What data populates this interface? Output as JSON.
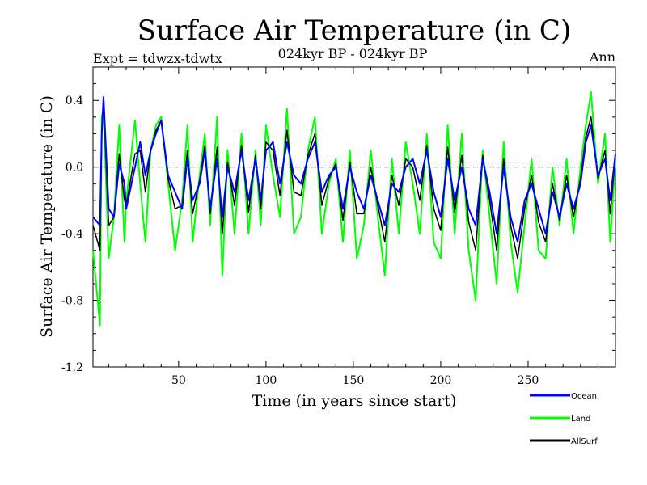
{
  "chart_data": {
    "type": "line",
    "title": "Surface Air Temperature (in C)",
    "subtitle": "024kyr BP - 024kyr BP",
    "experiment": "Expt = tdwzx-tdwtx",
    "period": "Ann",
    "xlabel": "Time (in years since start)",
    "ylabel": "Surface Air Temperature (in C)",
    "xlim": [
      1,
      300
    ],
    "ylim": [
      -1.2,
      0.6
    ],
    "x_ticks": [
      50,
      100,
      150,
      200,
      250
    ],
    "y_ticks": [
      "0.4",
      "0.0",
      "-0.4",
      "-0.8",
      "-1.2"
    ],
    "y_tick_values": [
      0.4,
      0.0,
      -0.4,
      -0.8,
      -1.2
    ],
    "reference_line": 0.0,
    "x": [
      1,
      5,
      6,
      7,
      10,
      13,
      16,
      19,
      20,
      25,
      28,
      31,
      34,
      37,
      40,
      44,
      48,
      52,
      55,
      58,
      62,
      65,
      68,
      72,
      75,
      78,
      82,
      86,
      90,
      94,
      97,
      100,
      104,
      108,
      112,
      116,
      120,
      124,
      128,
      132,
      136,
      140,
      144,
      148,
      152,
      156,
      160,
      164,
      168,
      172,
      176,
      180,
      184,
      188,
      192,
      196,
      200,
      204,
      208,
      212,
      216,
      220,
      224,
      228,
      232,
      236,
      240,
      244,
      248,
      252,
      256,
      260,
      264,
      268,
      272,
      276,
      280,
      283,
      286,
      290,
      294,
      297,
      300
    ],
    "series": [
      {
        "name": "Ocean",
        "color": "#0000ff",
        "values": [
          -0.3,
          -0.35,
          0.2,
          0.42,
          -0.25,
          -0.3,
          0.02,
          -0.1,
          -0.25,
          0.0,
          0.15,
          -0.05,
          0.1,
          0.2,
          0.28,
          -0.05,
          -0.15,
          -0.25,
          0.05,
          -0.2,
          -0.1,
          0.1,
          -0.25,
          0.05,
          -0.3,
          0.0,
          -0.15,
          0.1,
          -0.2,
          0.05,
          -0.2,
          0.1,
          0.15,
          -0.1,
          0.15,
          -0.05,
          -0.1,
          0.05,
          0.15,
          -0.15,
          -0.05,
          0.0,
          -0.25,
          0.0,
          -0.15,
          -0.25,
          -0.05,
          -0.2,
          -0.35,
          -0.1,
          -0.15,
          0.0,
          0.05,
          -0.1,
          0.1,
          -0.15,
          -0.3,
          0.05,
          -0.2,
          0.0,
          -0.25,
          -0.35,
          0.05,
          -0.15,
          -0.4,
          0.0,
          -0.3,
          -0.45,
          -0.2,
          -0.1,
          -0.25,
          -0.4,
          -0.15,
          -0.3,
          -0.1,
          -0.25,
          -0.1,
          0.15,
          0.25,
          -0.05,
          0.05,
          -0.2,
          0.08
        ]
      },
      {
        "name": "Land",
        "color": "#00ff00",
        "values": [
          -0.5,
          -0.95,
          0.3,
          0.35,
          -0.55,
          -0.3,
          0.25,
          -0.45,
          -0.2,
          0.28,
          -0.1,
          -0.45,
          0.1,
          0.25,
          0.3,
          -0.1,
          -0.5,
          -0.2,
          0.25,
          -0.45,
          -0.05,
          0.2,
          -0.35,
          0.3,
          -0.65,
          0.1,
          -0.4,
          0.2,
          -0.4,
          0.1,
          -0.35,
          0.25,
          -0.05,
          -0.3,
          0.35,
          -0.4,
          -0.3,
          0.1,
          0.3,
          -0.4,
          -0.1,
          0.05,
          -0.45,
          0.1,
          -0.55,
          -0.35,
          0.1,
          -0.3,
          -0.65,
          0.05,
          -0.4,
          0.15,
          -0.1,
          -0.4,
          0.2,
          -0.45,
          -0.55,
          0.25,
          -0.4,
          0.2,
          -0.5,
          -0.8,
          0.1,
          -0.3,
          -0.7,
          0.15,
          -0.45,
          -0.75,
          -0.35,
          0.05,
          -0.5,
          -0.55,
          0.0,
          -0.35,
          0.05,
          -0.4,
          0.0,
          0.25,
          0.45,
          -0.1,
          0.2,
          -0.45,
          0.05
        ]
      },
      {
        "name": "AllSurf",
        "color": "#000000",
        "values": [
          -0.35,
          -0.5,
          0.22,
          0.4,
          -0.35,
          -0.3,
          0.08,
          -0.2,
          -0.23,
          0.08,
          0.1,
          -0.15,
          0.1,
          0.22,
          0.28,
          -0.07,
          -0.25,
          -0.23,
          0.1,
          -0.28,
          -0.08,
          0.13,
          -0.28,
          0.12,
          -0.4,
          0.03,
          -0.23,
          0.13,
          -0.27,
          0.07,
          -0.25,
          0.15,
          0.1,
          -0.17,
          0.22,
          -0.15,
          -0.17,
          0.07,
          0.2,
          -0.23,
          -0.07,
          0.02,
          -0.32,
          0.03,
          -0.28,
          -0.28,
          0.0,
          -0.23,
          -0.45,
          -0.05,
          -0.23,
          0.05,
          0.0,
          -0.2,
          0.13,
          -0.25,
          -0.38,
          0.12,
          -0.27,
          0.07,
          -0.33,
          -0.5,
          0.07,
          -0.2,
          -0.5,
          0.05,
          -0.35,
          -0.55,
          -0.25,
          -0.05,
          -0.33,
          -0.45,
          -0.1,
          -0.32,
          -0.05,
          -0.3,
          -0.07,
          0.18,
          0.3,
          -0.07,
          0.1,
          -0.28,
          0.07
        ]
      }
    ]
  }
}
